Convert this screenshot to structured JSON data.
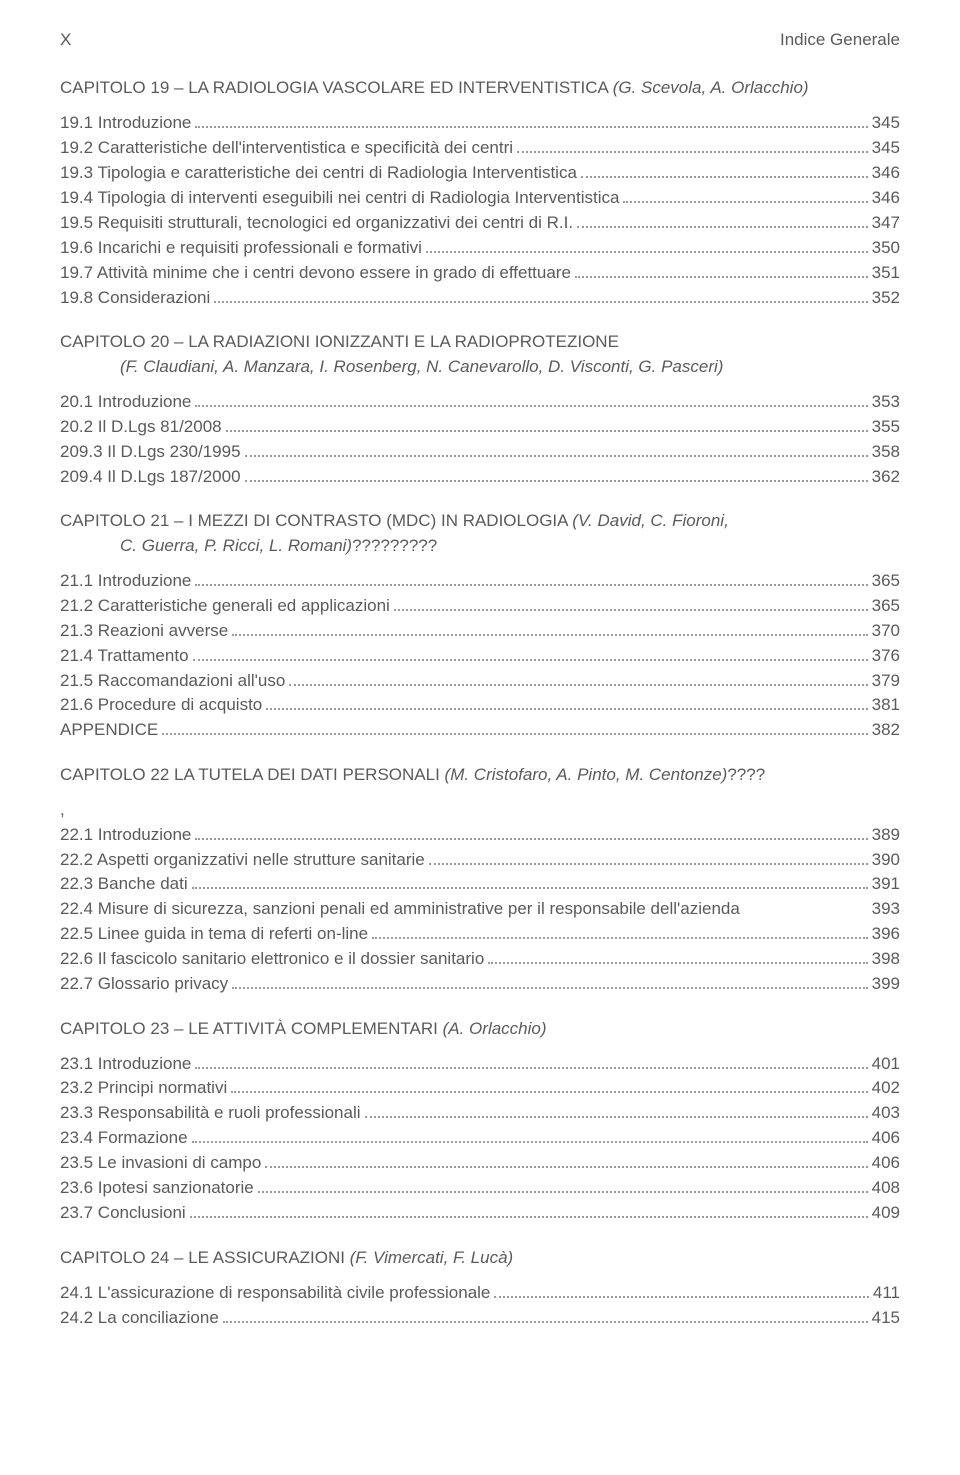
{
  "header": {
    "page_roman": "X",
    "running_head": "Indice Generale"
  },
  "colors": {
    "text": "#5a5a5a",
    "background": "#ffffff",
    "leader": "#9a9a9a"
  },
  "font": {
    "family": "Trebuchet MS",
    "body_size_pt": 13
  },
  "chapters": [
    {
      "title_prefix": "CAPITOLO 19 – LA RADIOLOGIA VASCOLARE ED INTERVENTISTICA ",
      "authors": "(G. Scevola, A. Orlacchio)",
      "entries": [
        {
          "label": "19.1  Introduzione",
          "page": "345"
        },
        {
          "label": "19.2  Caratteristiche dell'interventistica e specificità dei centri",
          "page": "345"
        },
        {
          "label": "19.3  Tipologia e caratteristiche dei centri di Radiologia Interventistica",
          "page": "346"
        },
        {
          "label": "19.4  Tipologia di interventi eseguibili nei centri di Radiologia Interventistica",
          "page": "346"
        },
        {
          "label": "19.5  Requisiti strutturali, tecnologici ed organizzativi dei centri di R.I.",
          "page": "347"
        },
        {
          "label": "19.6  Incarichi e requisiti professionali e formativi",
          "page": "350"
        },
        {
          "label": "19.7  Attività minime che i centri devono essere in grado di effettuare",
          "page": "351"
        },
        {
          "label": "19.8  Considerazioni",
          "page": "352"
        }
      ]
    },
    {
      "title_prefix": "CAPITOLO 20 – LA RADIAZIONI IONIZZANTI E LA RADIOPROTEZIONE",
      "authors": "(F. Claudiani, A. Manzara, I. Rosenberg, N. Canevarollo, D. Visconti, G. Pasceri)",
      "authors_indent": true,
      "entries": [
        {
          "label": "20.1  Introduzione",
          "page": "353"
        },
        {
          "label": "20.2  Il D.Lgs 81/2008",
          "page": "355"
        },
        {
          "label": "209.3 Il D.Lgs 230/1995",
          "page": "358"
        },
        {
          "label": "209.4 Il D.Lgs 187/2000",
          "page": "362"
        }
      ]
    },
    {
      "title_prefix": "CAPITOLO 21 – I MEZZI DI CONTRASTO (MDC) IN RADIOLOGIA ",
      "authors": "(V. David, C. Fioroni, C. Guerra, P. Ricci, L. Romani)",
      "suffix": "?????????",
      "authors_wrap": true,
      "entries": [
        {
          "label": "21.1  Introduzione",
          "page": "365"
        },
        {
          "label": "21.2  Caratteristiche generali ed applicazioni",
          "page": "365"
        },
        {
          "label": "21.3  Reazioni avverse",
          "page": "370"
        },
        {
          "label": "21.4  Trattamento",
          "page": "376"
        },
        {
          "label": "21.5  Raccomandazioni all'uso",
          "page": "379"
        },
        {
          "label": "21.6  Procedure di acquisto",
          "page": "381"
        },
        {
          "label": "APPENDICE",
          "page": "382"
        }
      ]
    },
    {
      "title_prefix": "CAPITOLO 22 LA TUTELA DEI DATI PERSONALI ",
      "authors": "(M. Cristofaro, A. Pinto, M. Centonze)",
      "suffix": "????",
      "note_after": ",",
      "entries": [
        {
          "label": "22.1  Introduzione",
          "page": "389"
        },
        {
          "label": "22.2  Aspetti organizzativi nelle strutture sanitarie",
          "page": "390"
        },
        {
          "label": "22.3  Banche dati",
          "page": "391"
        },
        {
          "label": "22.4  Misure di sicurezza, sanzioni penali ed amministrative per il responsabile dell'azienda",
          "page": "393",
          "no_leader": true
        },
        {
          "label": "22.5  Linee guida in tema di referti on-line",
          "page": "396"
        },
        {
          "label": "22.6  Il fascicolo sanitario elettronico e il dossier sanitario",
          "page": "398"
        },
        {
          "label": "22.7  Glossario privacy",
          "page": "399"
        }
      ]
    },
    {
      "title_prefix": "CAPITOLO 23 – LE ATTIVITÀ COMPLEMENTARI ",
      "authors": "(A. Orlacchio)",
      "entries": [
        {
          "label": "23.1  Introduzione",
          "page": "401"
        },
        {
          "label": "23.2  Principi normativi",
          "page": "402"
        },
        {
          "label": "23.3  Responsabilità e ruoli professionali",
          "page": "403"
        },
        {
          "label": "23.4  Formazione",
          "page": "406"
        },
        {
          "label": "23.5  Le invasioni di campo",
          "page": "406"
        },
        {
          "label": "23.6  Ipotesi sanzionatorie",
          "page": "408"
        },
        {
          "label": "23.7  Conclusioni",
          "page": "409"
        }
      ]
    },
    {
      "title_prefix": "CAPITOLO 24 – LE ASSICURAZIONI ",
      "authors": "(F. Vimercati, F. Lucà)",
      "entries": [
        {
          "label": "24.1  L'assicurazione di responsabilità civile professionale",
          "page": "411"
        },
        {
          "label": "24.2  La conciliazione",
          "page": "415"
        }
      ]
    }
  ]
}
